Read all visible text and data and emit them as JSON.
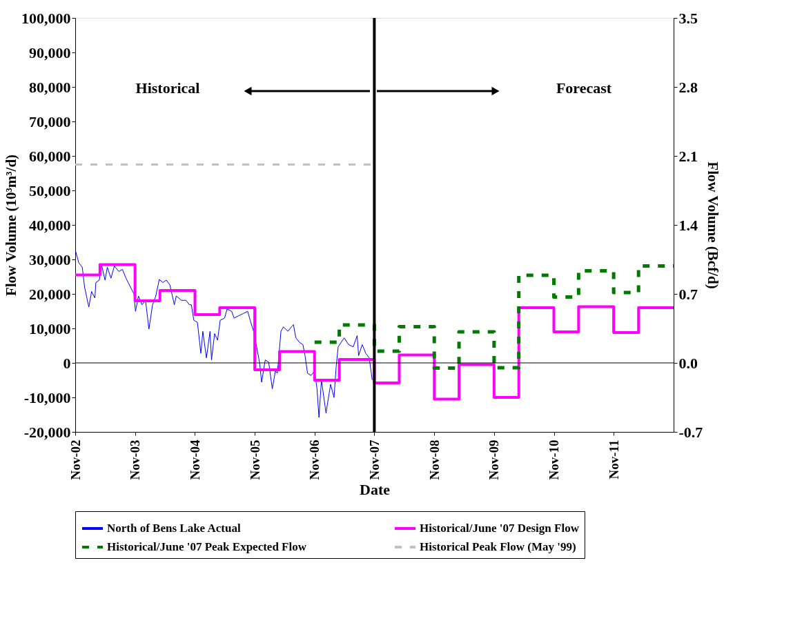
{
  "chart_data": {
    "type": "line",
    "xlabel": "Date",
    "ylabel": "Flow Volume  (10³m³/d)",
    "y2label": "Flow Volume  (Bcf/d)",
    "xlim": [
      "2002-11-01",
      "2012-11-01"
    ],
    "xticks": [
      {
        "value": "2002-11-01",
        "label": "Nov-02"
      },
      {
        "value": "2003-11-01",
        "label": "Nov-03"
      },
      {
        "value": "2004-11-01",
        "label": "Nov-04"
      },
      {
        "value": "2005-11-01",
        "label": "Nov-05"
      },
      {
        "value": "2006-11-01",
        "label": "Nov-06"
      },
      {
        "value": "2007-11-01",
        "label": "Nov-07"
      },
      {
        "value": "2008-11-01",
        "label": "Nov-08"
      },
      {
        "value": "2009-11-01",
        "label": "Nov-09"
      },
      {
        "value": "2010-11-01",
        "label": "Nov-10"
      },
      {
        "value": "2011-11-01",
        "label": "Nov-11"
      }
    ],
    "ylim": [
      -20000,
      100000
    ],
    "yticks": [
      {
        "value": -20000,
        "label": "-20,000"
      },
      {
        "value": -10000,
        "label": "-10,000"
      },
      0,
      {
        "value": 10000,
        "label": "10,000"
      },
      {
        "value": 20000,
        "label": "20,000"
      },
      {
        "value": 30000,
        "label": "30,000"
      },
      {
        "value": 40000,
        "label": "40,000"
      },
      {
        "value": 50000,
        "label": "50,000"
      },
      {
        "value": 60000,
        "label": "60,000"
      },
      {
        "value": 70000,
        "label": "70,000"
      },
      {
        "value": 80000,
        "label": "80,000"
      },
      {
        "value": 90000,
        "label": "90,000"
      },
      {
        "value": 100000,
        "label": "100,000"
      }
    ],
    "y2lim": [
      -0.7,
      3.5
    ],
    "y2ticks": [
      -0.7,
      {
        "value": 0,
        "label": "0.0"
      },
      0.7,
      1.4,
      2.1,
      2.8,
      3.5
    ],
    "grid": false,
    "legend": "bottom",
    "ref_lines": [
      {
        "axis": "x",
        "value": "2007-11-01",
        "color": "#000000"
      },
      {
        "axis": "y",
        "value": 0,
        "color": "#000000"
      }
    ],
    "annotations": [
      "Historical",
      "Forecast"
    ],
    "series": [
      {
        "name": "North of Bens Lake Actual",
        "color": "#0000ff",
        "line_style": "solid",
        "x": [
          "2002-11-02",
          "2002-11-23",
          "2002-12-14",
          "2002-12-28",
          "2003-01-23",
          "2003-02-09",
          "2003-03-01",
          "2003-03-07",
          "2003-03-28",
          "2003-04-11",
          "2003-05-02",
          "2003-05-16",
          "2003-06-07",
          "2003-06-28",
          "2003-07-25",
          "2003-08-16",
          "2003-09-07",
          "2003-10-04",
          "2003-10-25",
          "2003-11-04",
          "2003-11-22",
          "2003-12-13",
          "2004-01-04",
          "2004-01-25",
          "2004-02-16",
          "2004-03-07",
          "2004-03-28",
          "2004-04-19",
          "2004-05-10",
          "2004-06-01",
          "2004-06-28",
          "2004-07-10",
          "2004-08-10",
          "2004-09-07",
          "2004-09-28",
          "2004-10-10",
          "2004-10-25",
          "2004-11-16",
          "2004-12-07",
          "2004-12-19",
          "2005-01-10",
          "2005-02-01",
          "2005-02-10",
          "2005-03-01",
          "2005-03-19",
          "2005-04-04",
          "2005-05-01",
          "2005-05-16",
          "2005-06-13",
          "2005-06-28",
          "2005-07-25",
          "2005-08-22",
          "2005-09-19",
          "2005-10-04",
          "2005-10-25",
          "2005-11-10",
          "2005-11-30",
          "2005-12-13",
          "2006-01-04",
          "2006-01-25",
          "2006-02-16",
          "2006-03-07",
          "2006-03-19",
          "2006-04-10",
          "2006-04-25",
          "2006-05-22",
          "2006-06-13",
          "2006-06-25",
          "2006-07-10",
          "2006-08-01",
          "2006-08-22",
          "2006-09-04",
          "2006-09-19",
          "2006-10-10",
          "2006-11-01",
          "2006-11-16",
          "2006-11-28",
          "2006-12-13",
          "2007-01-10",
          "2007-02-07",
          "2007-02-28",
          "2007-03-13",
          "2007-03-25",
          "2007-05-01",
          "2007-05-28",
          "2007-06-25",
          "2007-07-19",
          "2007-07-28",
          "2007-08-19",
          "2007-09-10",
          "2007-10-01",
          "2007-10-19"
        ],
        "values": [
          32600,
          29000,
          27750,
          22000,
          16200,
          20700,
          18800,
          23300,
          24000,
          28400,
          24000,
          27750,
          24550,
          28100,
          26500,
          27100,
          24550,
          22000,
          20050,
          14950,
          19400,
          16850,
          18150,
          9800,
          16850,
          19400,
          24200,
          23300,
          24000,
          22600,
          16850,
          19400,
          18150,
          18150,
          16850,
          16850,
          12350,
          11750,
          2750,
          9150,
          1450,
          9150,
          850,
          8500,
          6600,
          12350,
          13000,
          15600,
          14950,
          13000,
          13650,
          14300,
          14950,
          12350,
          9150,
          5300,
          200,
          -5600,
          850,
          200,
          -7500,
          -2350,
          -3000,
          9150,
          10450,
          9150,
          10450,
          11100,
          7250,
          5950,
          5300,
          2100,
          -3000,
          -3650,
          -2350,
          -7500,
          -15800,
          -4950,
          -14550,
          -6200,
          -10050,
          -1100,
          4650,
          7250,
          5300,
          4650,
          7900,
          2100,
          5300,
          2750,
          1450,
          -4950
        ]
      },
      {
        "name": "Historical/June '07 Design Flow",
        "color": "#ff00ff",
        "type": "step",
        "line_style": "solid",
        "x": [
          "2002-11-01",
          "2003-04-01",
          "2003-11-01",
          "2004-04-01",
          "2004-11-01",
          "2005-04-01",
          "2005-11-01",
          "2006-04-01",
          "2006-11-01",
          "2007-04-01",
          "2007-11-01",
          "2008-04-01",
          "2008-11-01",
          "2009-04-01",
          "2009-11-01",
          "2010-04-01",
          "2010-11-01",
          "2011-04-01",
          "2011-11-01",
          "2012-04-01",
          "2012-11-01"
        ],
        "values": [
          25500,
          28500,
          18000,
          21000,
          14000,
          16000,
          -2000,
          3300,
          -5000,
          1000,
          -5800,
          2300,
          -10500,
          -500,
          -10000,
          16000,
          9000,
          16300,
          8800,
          16000,
          16000
        ]
      },
      {
        "name": "Historical/June '07 Peak Expected Flow",
        "color": "#007a00",
        "type": "step",
        "line_style": "dashed",
        "x": [
          "2006-11-01",
          "2007-04-01",
          "2007-11-01",
          "2008-04-01",
          "2008-11-01",
          "2009-04-01",
          "2009-11-01",
          "2010-04-01",
          "2010-11-01",
          "2011-04-01",
          "2011-11-01",
          "2012-04-01",
          "2012-11-01"
        ],
        "values": [
          6000,
          11000,
          3400,
          10500,
          -1500,
          9000,
          -1400,
          25400,
          19100,
          26700,
          20400,
          28100,
          28100
        ]
      },
      {
        "name": "Historical Peak Flow (May '99)",
        "color": "#c0c0c0",
        "line_style": "dashed",
        "x": [
          "2002-11-01",
          "2007-11-01"
        ],
        "values": [
          57500,
          57500
        ]
      }
    ]
  }
}
